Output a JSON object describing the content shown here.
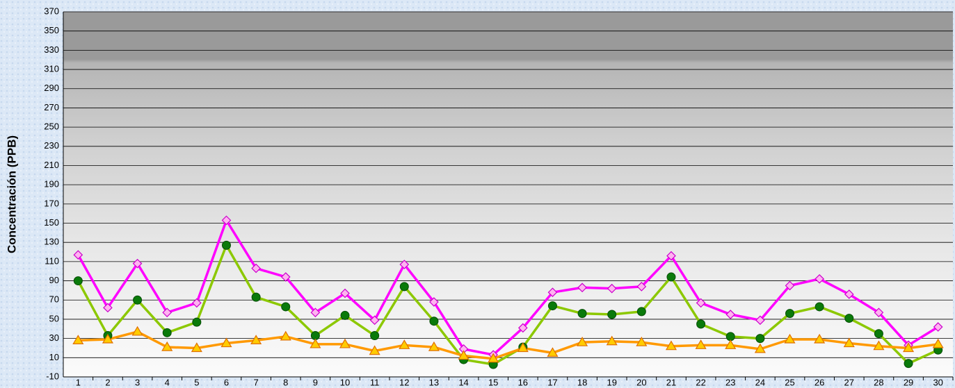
{
  "chart_data": {
    "type": "line",
    "y_label": "Concentración  (PPB)",
    "categories": [
      "1",
      "2",
      "3",
      "4",
      "5",
      "6",
      "7",
      "8",
      "9",
      "10",
      "11",
      "12",
      "13",
      "14",
      "15",
      "16",
      "17",
      "18",
      "19",
      "20",
      "21",
      "22",
      "23",
      "24",
      "25",
      "26",
      "27",
      "28",
      "29",
      "30"
    ],
    "series": [
      {
        "color": "#ff00ff",
        "marker": "diamond",
        "values": [
          117,
          62,
          108,
          57,
          67,
          153,
          103,
          94,
          57,
          77,
          49,
          107,
          68,
          19,
          13,
          41,
          78,
          83,
          82,
          84,
          116,
          67,
          55,
          49,
          85,
          92,
          76,
          57,
          23,
          42
        ]
      },
      {
        "color": "#8cc800",
        "marker": "circle",
        "values": [
          90,
          33,
          70,
          36,
          47,
          127,
          73,
          63,
          33,
          54,
          33,
          84,
          48,
          8,
          3,
          21,
          64,
          56,
          55,
          58,
          94,
          45,
          32,
          30,
          56,
          63,
          51,
          35,
          4,
          18
        ]
      },
      {
        "color": "#ff9900",
        "marker": "triangle",
        "values": [
          28,
          29,
          37,
          21,
          20,
          25,
          28,
          32,
          24,
          24,
          17,
          23,
          21,
          12,
          9,
          20,
          15,
          26,
          27,
          26,
          22,
          23,
          23,
          19,
          29,
          29,
          25,
          22,
          20,
          24
        ]
      }
    ],
    "ylim": [
      -10,
      370
    ],
    "yticks": [
      -10,
      10,
      30,
      50,
      70,
      90,
      110,
      130,
      150,
      170,
      190,
      210,
      230,
      250,
      270,
      290,
      310,
      330,
      350,
      370
    ],
    "grid": true
  }
}
